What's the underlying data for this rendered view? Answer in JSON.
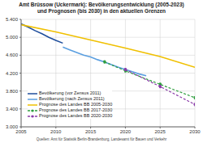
{
  "chart_data": {
    "type": "line",
    "title": "Amt Brüssow (Uckermark): Bevölkerungsentwicklung (2005-2023)",
    "subtitle": "und Prognosen (bis 2030) in den aktuellen Grenzen",
    "source": "Quellen: Amt für Statistik Berlin-Brandenburg, Landesamt für Bauen und Verkehr",
    "xlim": [
      2005,
      2030
    ],
    "xticks": [
      2005,
      2010,
      2015,
      2020,
      2025,
      2030
    ],
    "ylim": [
      3000,
      5400
    ],
    "yticks": [
      {
        "value": 3000,
        "label": "3.000"
      },
      {
        "value": 3400,
        "label": "3.400"
      },
      {
        "value": 3800,
        "label": "3.800"
      },
      {
        "value": 4200,
        "label": "4.200"
      },
      {
        "value": 4600,
        "label": "4.600"
      },
      {
        "value": 5000,
        "label": "5.000"
      },
      {
        "value": 5400,
        "label": "5.400"
      }
    ],
    "grid": true,
    "legend": "lower left",
    "series": [
      {
        "name": "Bevölkerung (vor Zensus 2011)",
        "color": "#1f4e9c",
        "line_style": "solid",
        "x": [
          2005,
          2006,
          2007,
          2008,
          2009,
          2010,
          2011
        ],
        "values": [
          5300,
          5230,
          5150,
          5080,
          5000,
          4930,
          4870
        ]
      },
      {
        "name": "Bevölkerung (nach Zensus 2011)",
        "color": "#5b9fe0",
        "line_style": "solid",
        "x": [
          2011,
          2012,
          2013,
          2014,
          2015,
          2016,
          2017,
          2018,
          2019,
          2020,
          2021,
          2022,
          2023
        ],
        "values": [
          4780,
          4720,
          4660,
          4600,
          4560,
          4500,
          4450,
          4390,
          4330,
          4280,
          4230,
          4180,
          4140
        ]
      },
      {
        "name": "Prognose des Landes BB 2005-2030",
        "color": "#f0c000",
        "line_style": "solid",
        "x": [
          2005,
          2010,
          2015,
          2020,
          2025,
          2030
        ],
        "values": [
          5280,
          5120,
          4940,
          4760,
          4570,
          4330
        ]
      },
      {
        "name": "Prognose des Landes BB 2017-2030",
        "color": "#2e9e3e",
        "line_style": "dashed",
        "marker": "circle",
        "x": [
          2017,
          2020,
          2025,
          2030
        ],
        "values": [
          4450,
          4250,
          3950,
          3650
        ]
      },
      {
        "name": "Prognose des Landes BB 2020-2030",
        "color": "#8a3aa8",
        "line_style": "dashed",
        "marker": "circle",
        "x": [
          2020,
          2025,
          2030
        ],
        "values": [
          4280,
          3900,
          3500
        ]
      }
    ]
  }
}
